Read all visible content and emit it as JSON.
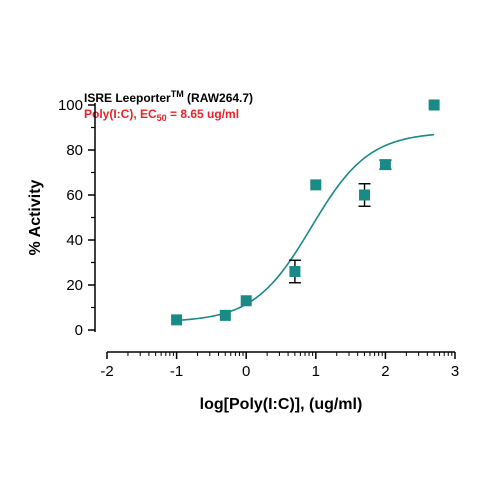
{
  "colors": {
    "series": "#1a8a86",
    "ec50_text": "#e8232b",
    "axis": "#000000"
  },
  "chart_data": {
    "type": "scatter",
    "xlabel": "log[Poly(I:C)], (ug/ml)",
    "ylabel": "% Activity",
    "xlim": [
      -2,
      3
    ],
    "ylim": [
      0,
      100
    ],
    "xticks": [
      -2,
      -1,
      0,
      1,
      2,
      3
    ],
    "yticks": [
      0,
      20,
      40,
      60,
      80,
      100
    ],
    "xtick_labels": [
      "-2",
      "-1",
      "0",
      "1",
      "2",
      "3"
    ],
    "ytick_labels": [
      "0",
      "20",
      "40",
      "60",
      "80",
      "100"
    ],
    "legend": {
      "line1": {
        "prefix": "ISRE Leeporter",
        "sup": "TM",
        "suffix": " (RAW264.7)"
      },
      "line2": {
        "prefix": "Poly(I:C), EC",
        "sub": "50",
        "suffix": " = 8.65 ug/ml"
      }
    },
    "points": [
      {
        "x": -1.0,
        "y": 4.5
      },
      {
        "x": -0.3,
        "y": 6.5
      },
      {
        "x": 0.0,
        "y": 13
      },
      {
        "x": 0.7,
        "y": 26,
        "err": 5
      },
      {
        "x": 1.0,
        "y": 64.5
      },
      {
        "x": 1.7,
        "y": 60,
        "err": 5
      },
      {
        "x": 2.0,
        "y": 73.5,
        "err": 2
      },
      {
        "x": 2.7,
        "y": 100
      }
    ],
    "fit": {
      "bottom": 3.5,
      "top": 88,
      "logEC50": 0.937,
      "hill": 1.05,
      "xrange": [
        -1,
        2.7
      ]
    }
  }
}
